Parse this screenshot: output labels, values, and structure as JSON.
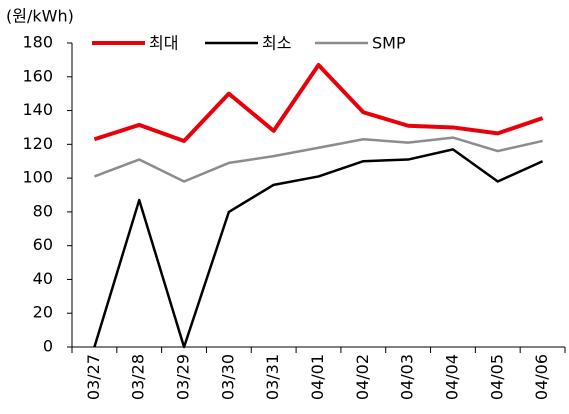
{
  "chart_data": {
    "type": "line",
    "y_axis_label": "(원/kWh)",
    "categories": [
      "03/27",
      "03/28",
      "03/29",
      "03/30",
      "03/31",
      "04/01",
      "04/02",
      "04/03",
      "04/04",
      "04/05",
      "04/06"
    ],
    "series": [
      {
        "name": "최대",
        "color": "#e8000b",
        "values": [
          123,
          131.5,
          122,
          150,
          128,
          167,
          139,
          131,
          130,
          126.5,
          135.5
        ]
      },
      {
        "name": "최소",
        "color": "#000000",
        "values": [
          0,
          87,
          0,
          80,
          96,
          101,
          110,
          111,
          117,
          98,
          110
        ]
      },
      {
        "name": "SMP",
        "color": "#8c8c8c",
        "values": [
          101,
          111,
          98,
          109,
          113,
          118,
          123,
          121,
          124,
          116,
          122
        ]
      }
    ],
    "ylim": [
      0,
      180
    ],
    "yticks": [
      0,
      20,
      40,
      60,
      80,
      100,
      120,
      140,
      160,
      180
    ],
    "legend": "top"
  }
}
